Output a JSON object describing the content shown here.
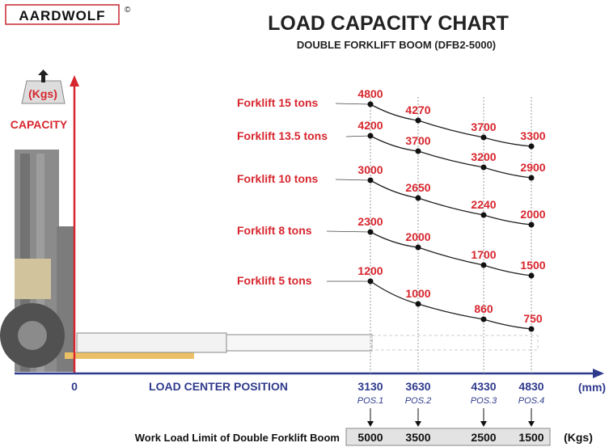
{
  "logo": {
    "text": "AARDWOLF",
    "copyright": "©"
  },
  "title": "LOAD CAPACITY CHART",
  "subtitle": "DOUBLE FORKLIFT BOOM (DFB2-5000)",
  "chart_data": {
    "type": "line",
    "title": "LOAD CAPACITY CHART",
    "subtitle": "DOUBLE FORKLIFT BOOM (DFB2-5000)",
    "ylabel": "CAPACITY",
    "yunit": "(Kgs)",
    "xlabel": "LOAD CENTER POSITION",
    "xunit": "(mm)",
    "x_origin": "0",
    "x": [
      "3130",
      "3630",
      "4330",
      "4830"
    ],
    "positions": [
      "POS.1",
      "POS.2",
      "POS.3",
      "POS.4"
    ],
    "series": [
      {
        "name": "Forklift 15 tons",
        "values": [
          4800,
          4270,
          3700,
          3300
        ]
      },
      {
        "name": "Forklift 13.5 tons",
        "values": [
          4200,
          3700,
          3200,
          2900
        ]
      },
      {
        "name": "Forklift 10 tons",
        "values": [
          3000,
          2650,
          2240,
          2000
        ]
      },
      {
        "name": "Forklift 8 tons",
        "values": [
          2300,
          2000,
          1700,
          1500
        ]
      },
      {
        "name": "Forklift 5 tons",
        "values": [
          1200,
          1000,
          860,
          750
        ]
      }
    ],
    "work_load_limit": {
      "label": "Work Load Limit of Double Forklift Boom",
      "values": [
        "5000",
        "3500",
        "2500",
        "1500"
      ],
      "unit": "(Kgs)"
    },
    "colors": {
      "series": "#d7262e",
      "axis_x": "#2e3a8c",
      "axis_y": "#d7262e"
    }
  }
}
